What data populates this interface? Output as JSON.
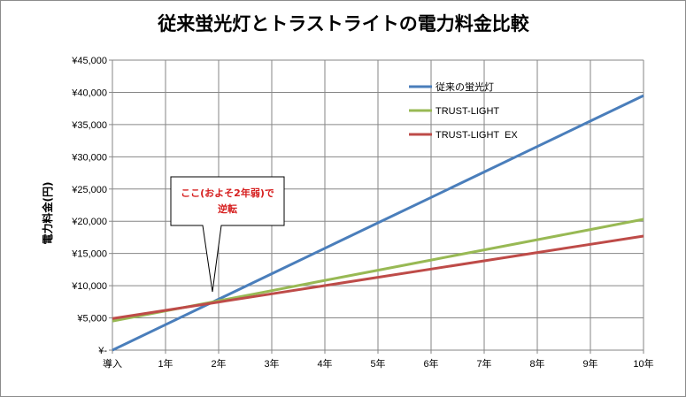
{
  "chart_data": {
    "type": "line",
    "title": "従来蛍光灯とトラストライトの電力料金比較",
    "ylabel": "電力料金(円)",
    "xlabel": "",
    "categories": [
      "導入",
      "1年",
      "2年",
      "3年",
      "4年",
      "5年",
      "6年",
      "7年",
      "8年",
      "9年",
      "10年"
    ],
    "yticks": [
      "¥-",
      "¥5,000",
      "¥10,000",
      "¥15,000",
      "¥20,000",
      "¥25,000",
      "¥30,000",
      "¥35,000",
      "¥40,000",
      "¥45,000"
    ],
    "ylim": [
      0,
      45000
    ],
    "grid": true,
    "legend_position": "top-right",
    "series": [
      {
        "name": "従来の蛍光灯",
        "color": "#4a7ebb",
        "values": [
          0,
          3950,
          7900,
          11850,
          15800,
          19750,
          23700,
          27650,
          31600,
          35550,
          39500
        ]
      },
      {
        "name": "TRUST-LIGHT",
        "color": "#98b954",
        "values": [
          4500,
          6080,
          7660,
          9240,
          10820,
          12400,
          13980,
          15560,
          17140,
          18720,
          20300
        ]
      },
      {
        "name": "TRUST-LIGHT  EX",
        "color": "#be4b48",
        "values": [
          4900,
          6180,
          7460,
          8740,
          10020,
          11300,
          12580,
          13860,
          15140,
          16420,
          17700
        ]
      }
    ],
    "annotations": [
      {
        "line1": "ここ(およそ2年弱)で",
        "line2": "逆転"
      }
    ]
  }
}
